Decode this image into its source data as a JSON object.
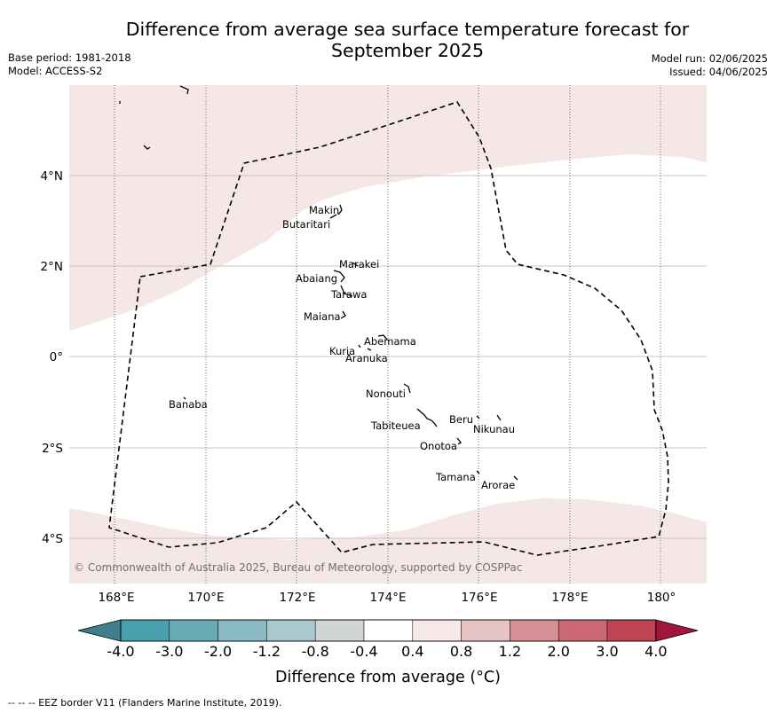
{
  "title_line1": "Difference from average sea surface temperature forecast for",
  "title_line2": "September 2025",
  "meta_left": {
    "base_period": "Base period: 1981-2018",
    "model": "Model: ACCESS-S2"
  },
  "meta_right": {
    "model_run": "Model run: 02/06/2025",
    "issued": "Issued: 04/06/2025"
  },
  "map": {
    "lon_ticks": [
      "168°E",
      "170°E",
      "172°E",
      "174°E",
      "176°E",
      "178°E",
      "180°"
    ],
    "lat_ticks": [
      "4°N",
      "2°N",
      "0°",
      "2°S",
      "4°S"
    ],
    "places": {
      "makin": "Makin",
      "butaritari": "Butaritari",
      "marakei": "Marakei",
      "abaiang": "Abaiang",
      "tarawa": "Tarawa",
      "maiana": "Maiana",
      "abemama": "Abemama",
      "kuria": "Kuria",
      "aranuka": "Aranuka",
      "nonouti": "Nonouti",
      "banaba": "Banaba",
      "beru": "Beru",
      "nikunau": "Nikunau",
      "tabiteuea": "Tabiteuea",
      "onotoa": "Onotoa",
      "tamana": "Tamana",
      "arorae": "Arorae"
    },
    "copyright": "© Commonwealth of Australia 2025, Bureau of Meteorology, supported by COSPPac",
    "shaded_category": "0.4 to 0.8",
    "colors": {
      "shade": "#f4e7e6",
      "border": "#000000",
      "grid": "#cfc0c4"
    }
  },
  "colorbar": {
    "labels": [
      "-4.0",
      "-3.0",
      "-2.0",
      "-1.2",
      "-0.8",
      "-0.4",
      "0.4",
      "0.8",
      "1.2",
      "2.0",
      "3.0",
      "4.0"
    ],
    "colors": [
      "#3f7f8c",
      "#4a9fae",
      "#6aaab5",
      "#89b9c2",
      "#a9c9cd",
      "#d1d5d6",
      "#ffffff",
      "#f6e9e8",
      "#e6c5c4",
      "#d68f95",
      "#cc6873",
      "#bf4453",
      "#a3163c"
    ],
    "title": "Difference from average (°C)"
  },
  "footer": "--  --  -- EEZ border V11 (Flanders Marine Institute, 2019)."
}
